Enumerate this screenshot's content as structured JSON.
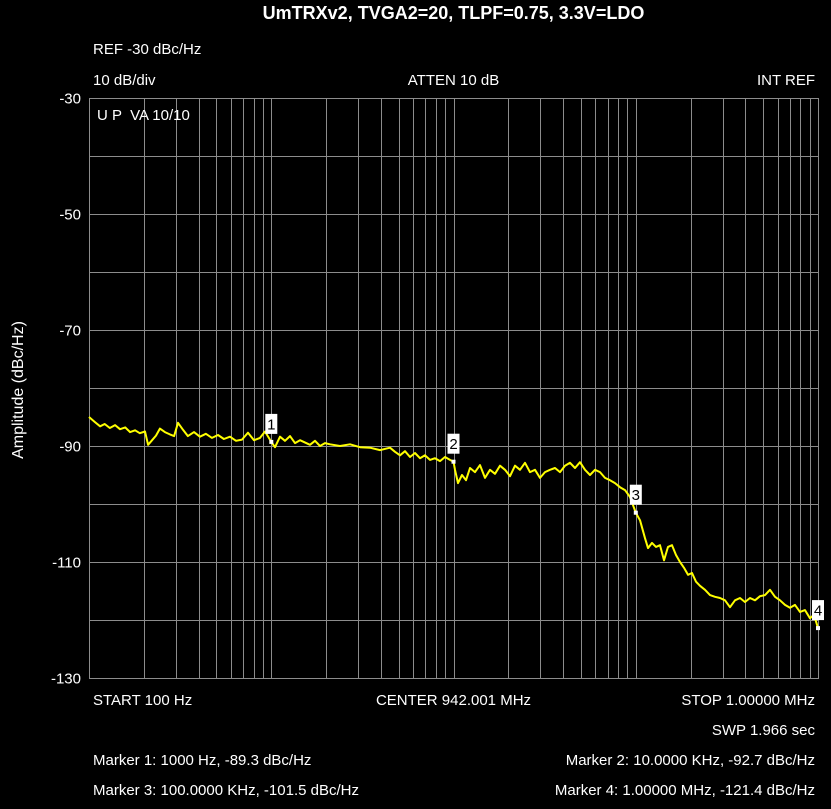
{
  "analyzer": {
    "reference_level": "REF -30 dBc/Hz",
    "scale": "10 dB/div",
    "attenuation": "ATTEN 10 dB",
    "reference_source": "INT REF",
    "display_mode": "U P  VA 10/10",
    "start": "START 100 Hz",
    "center": "CENTER 942.001 MHz",
    "stop": "STOP 1.00000 MHz",
    "sweep": "SWP 1.966 sec"
  },
  "marker_readouts": [
    "Marker 1: 1000 Hz, -89.3 dBc/Hz",
    "Marker 2: 10.0000 KHz, -92.7 dBc/Hz",
    "Marker 3: 100.0000 KHz, -101.5 dBc/Hz",
    "Marker 4: 1.00000 MHz, -121.4 dBc/Hz"
  ],
  "colors": {
    "background": "#000000",
    "text": "#ffffff",
    "grid": "#8c8c8c",
    "trace": "#ffff00",
    "marker_box": "#ffffff",
    "marker_text": "#000000"
  },
  "chart_data": {
    "type": "line",
    "title": "UmTRXv2, TVGA2=20, TLPF=0.75, 3.3V=LDO",
    "ylabel": "Amplitude (dBc/Hz)",
    "x_scale": "log",
    "xlim": [
      100,
      1000000
    ],
    "ylim": [
      -130,
      -30
    ],
    "y_ticks": [
      -30,
      -50,
      -70,
      -90,
      -110,
      -130
    ],
    "y_grid_step": 10,
    "grid": true,
    "series": [
      {
        "x": [
          100,
          108,
          115,
          122,
          130,
          139,
          148,
          158,
          168,
          179,
          190,
          203,
          211,
          222,
          233,
          245,
          261,
          278,
          293,
          308,
          328,
          349,
          377,
          406,
          438,
          473,
          510,
          550,
          594,
          641,
          691,
          745,
          804,
          868,
          924,
          1000,
          1048,
          1117,
          1190,
          1267,
          1350,
          1438,
          1632,
          1739,
          1852,
          1972,
          2101,
          2384,
          2705,
          3069,
          3482,
          3951,
          4483,
          4775,
          5087,
          5418,
          5772,
          6149,
          6550,
          6976,
          7432,
          7916,
          8433,
          8982,
          9568,
          10000,
          10190,
          10585,
          11135,
          11710,
          12315,
          13122,
          13980,
          14890,
          15860,
          16890,
          17990,
          19170,
          20420,
          21750,
          23170,
          24680,
          26290,
          28010,
          29830,
          31780,
          33850,
          36060,
          38410,
          40910,
          43580,
          46420,
          49450,
          52670,
          56110,
          59760,
          63660,
          67810,
          72230,
          76930,
          81950,
          87300,
          92990,
          100000,
          105500,
          112400,
          116700,
          122800,
          129200,
          135900,
          142900,
          150300,
          158100,
          166300,
          174900,
          184000,
          193500,
          203600,
          214100,
          225200,
          239900,
          255600,
          272200,
          290000,
          308900,
          329000,
          350500,
          373300,
          397700,
          423600,
          451200,
          480700,
          512000,
          545400,
          580900,
          618800,
          659200,
          702200,
          747900,
          796800,
          848700,
          904000,
          951000,
          1000000
        ],
        "y": [
          -85.0,
          -85.9,
          -86.6,
          -86.2,
          -86.9,
          -86.4,
          -87.1,
          -86.8,
          -87.6,
          -87.3,
          -87.8,
          -87.5,
          -89.8,
          -89.0,
          -88.2,
          -87.0,
          -87.6,
          -88.0,
          -88.3,
          -86.0,
          -87.2,
          -88.3,
          -87.6,
          -88.4,
          -87.9,
          -88.6,
          -88.1,
          -88.8,
          -88.4,
          -89.1,
          -88.9,
          -87.7,
          -89.0,
          -88.6,
          -87.5,
          -89.3,
          -90.2,
          -88.4,
          -89.1,
          -88.3,
          -89.5,
          -89.0,
          -89.8,
          -89.1,
          -90.0,
          -89.5,
          -89.7,
          -90.0,
          -89.7,
          -90.2,
          -90.3,
          -90.7,
          -90.3,
          -91.0,
          -91.6,
          -90.9,
          -91.9,
          -91.2,
          -92.1,
          -91.6,
          -92.4,
          -92.1,
          -92.6,
          -91.9,
          -92.4,
          -92.7,
          -94.1,
          -96.4,
          -95.0,
          -95.9,
          -93.8,
          -94.5,
          -93.3,
          -95.5,
          -94.1,
          -94.8,
          -93.4,
          -94.1,
          -95.2,
          -93.4,
          -94.1,
          -92.9,
          -94.5,
          -94.1,
          -95.5,
          -94.5,
          -94.1,
          -93.8,
          -94.5,
          -93.4,
          -92.9,
          -93.8,
          -92.8,
          -94.1,
          -95.0,
          -94.1,
          -94.5,
          -95.5,
          -95.9,
          -96.4,
          -97.1,
          -97.6,
          -98.8,
          -101.5,
          -102.8,
          -105.9,
          -107.6,
          -106.7,
          -107.4,
          -107.1,
          -109.7,
          -107.4,
          -107.1,
          -108.8,
          -110.0,
          -111.0,
          -112.2,
          -111.9,
          -113.4,
          -114.1,
          -114.8,
          -115.7,
          -116.0,
          -116.2,
          -116.6,
          -117.8,
          -116.6,
          -116.2,
          -116.9,
          -116.2,
          -116.6,
          -115.9,
          -115.7,
          -114.8,
          -116.0,
          -116.6,
          -117.4,
          -117.9,
          -117.4,
          -118.6,
          -118.3,
          -119.7,
          -119.1,
          -121.4
        ]
      }
    ],
    "markers": [
      {
        "label": "1",
        "x": 1000,
        "y": -89.3
      },
      {
        "label": "2",
        "x": 10000,
        "y": -92.7
      },
      {
        "label": "3",
        "x": 100000,
        "y": -101.5
      },
      {
        "label": "4",
        "x": 1000000,
        "y": -121.4
      }
    ]
  }
}
